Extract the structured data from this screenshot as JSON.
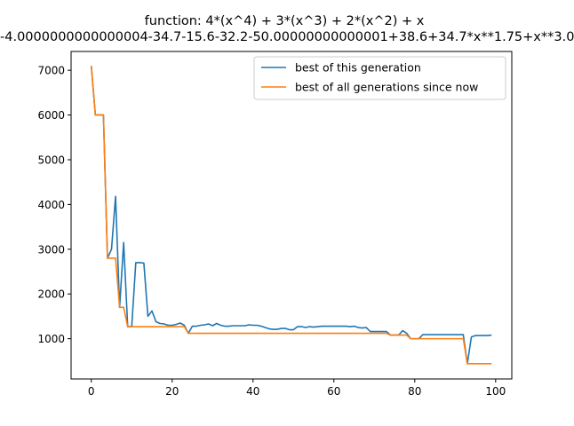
{
  "chart_data": {
    "type": "line",
    "title": "function:  4*(x^4) + 3*(x^3) + 2*(x^2) + x",
    "subtitle": "-4.0000000000000004-34.7-15.6-32.2-50.00000000000001+38.6+34.7*x**1.75+x**3.0",
    "xlabel": "",
    "ylabel": "",
    "xlim": [
      -5,
      104
    ],
    "ylim": [
      100,
      7420
    ],
    "xticks": [
      0,
      20,
      40,
      60,
      80,
      100
    ],
    "yticks": [
      1000,
      2000,
      3000,
      4000,
      5000,
      6000,
      7000
    ],
    "grid": false,
    "legend_position": "top-right",
    "x": [
      0,
      1,
      2,
      3,
      4,
      5,
      6,
      7,
      8,
      9,
      10,
      11,
      12,
      13,
      14,
      15,
      16,
      17,
      18,
      19,
      20,
      21,
      22,
      23,
      24,
      25,
      26,
      27,
      28,
      29,
      30,
      31,
      32,
      33,
      34,
      35,
      36,
      37,
      38,
      39,
      40,
      41,
      42,
      43,
      44,
      45,
      46,
      47,
      48,
      49,
      50,
      51,
      52,
      53,
      54,
      55,
      56,
      57,
      58,
      59,
      60,
      61,
      62,
      63,
      64,
      65,
      66,
      67,
      68,
      69,
      70,
      71,
      72,
      73,
      74,
      75,
      76,
      77,
      78,
      79,
      80,
      81,
      82,
      83,
      84,
      85,
      86,
      87,
      88,
      89,
      90,
      91,
      92,
      93,
      94,
      95,
      96,
      97,
      98,
      99
    ],
    "series": [
      {
        "name": "best of this generation",
        "color": "#1f77b4",
        "values": [
          7100,
          6000,
          6000,
          6000,
          2800,
          3000,
          4180,
          1700,
          3150,
          1270,
          1270,
          2700,
          2700,
          2690,
          1500,
          1620,
          1380,
          1340,
          1330,
          1300,
          1300,
          1320,
          1350,
          1300,
          1120,
          1280,
          1280,
          1300,
          1310,
          1330,
          1290,
          1340,
          1300,
          1280,
          1280,
          1290,
          1290,
          1290,
          1290,
          1310,
          1300,
          1300,
          1280,
          1250,
          1220,
          1210,
          1210,
          1230,
          1230,
          1200,
          1200,
          1270,
          1270,
          1250,
          1270,
          1260,
          1270,
          1280,
          1280,
          1280,
          1280,
          1280,
          1280,
          1280,
          1270,
          1280,
          1250,
          1240,
          1250,
          1160,
          1160,
          1160,
          1160,
          1160,
          1080,
          1080,
          1080,
          1180,
          1120,
          1000,
          1000,
          1000,
          1090,
          1090,
          1090,
          1090,
          1090,
          1090,
          1090,
          1090,
          1090,
          1090,
          1090,
          440,
          1040,
          1070,
          1070,
          1070,
          1070,
          1080
        ]
      },
      {
        "name": "best of all generations since now",
        "color": "#ff7f0e",
        "values": [
          7100,
          6000,
          6000,
          6000,
          2800,
          2800,
          2800,
          1700,
          1700,
          1270,
          1270,
          1270,
          1270,
          1270,
          1270,
          1270,
          1270,
          1270,
          1270,
          1270,
          1270,
          1270,
          1270,
          1270,
          1120,
          1120,
          1120,
          1120,
          1120,
          1120,
          1120,
          1120,
          1120,
          1120,
          1120,
          1120,
          1120,
          1120,
          1120,
          1120,
          1120,
          1120,
          1120,
          1120,
          1120,
          1120,
          1120,
          1120,
          1120,
          1120,
          1120,
          1120,
          1120,
          1120,
          1120,
          1120,
          1120,
          1120,
          1120,
          1120,
          1120,
          1120,
          1120,
          1120,
          1120,
          1120,
          1120,
          1120,
          1120,
          1120,
          1120,
          1120,
          1120,
          1120,
          1080,
          1080,
          1080,
          1080,
          1080,
          1000,
          1000,
          1000,
          1000,
          1000,
          1000,
          1000,
          1000,
          1000,
          1000,
          1000,
          1000,
          1000,
          1000,
          440,
          440,
          440,
          440,
          440,
          440,
          440
        ]
      }
    ]
  }
}
